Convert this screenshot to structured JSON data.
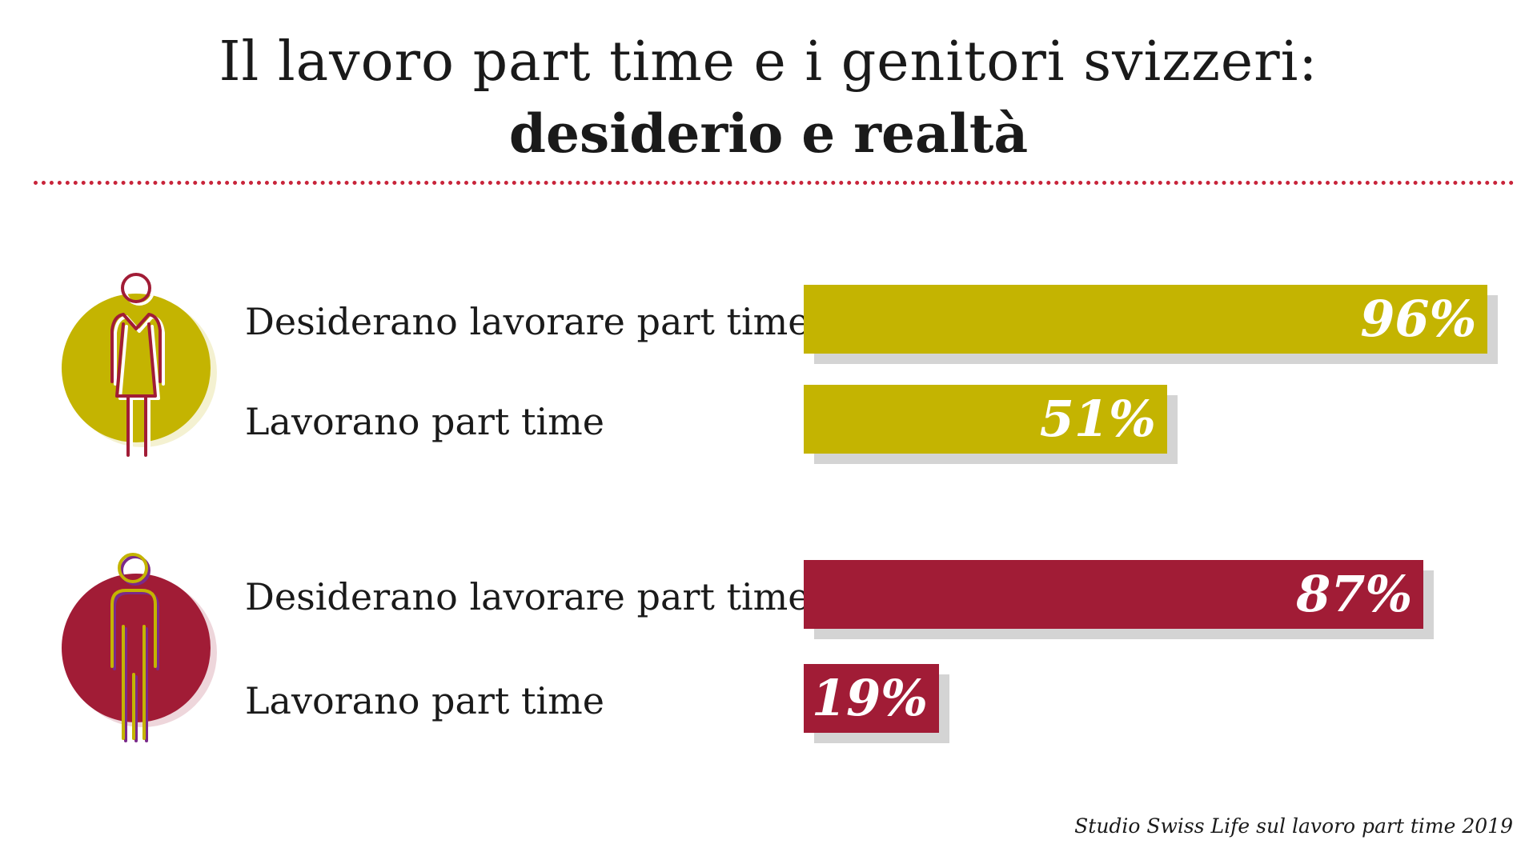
{
  "title": {
    "line1": "Il lavoro part time e i genitori svizzeri:",
    "line2": "desiderio e realtà"
  },
  "source": "Studio Swiss Life sul lavoro part time 2019",
  "colors": {
    "women": "#c4b401",
    "men": "#a11c36",
    "divider": "#c8243a",
    "shadow": "#d4d4d4"
  },
  "icons": {
    "women": "woman-icon",
    "men": "man-icon"
  },
  "chart_data": {
    "type": "bar",
    "orientation": "horizontal",
    "unit": "%",
    "xlim": [
      0,
      100
    ],
    "groups": [
      {
        "icon": "woman-icon",
        "color": "#c4b401",
        "bars": [
          {
            "label": "Desiderano lavorare part time",
            "value": 96,
            "display": "96%"
          },
          {
            "label": "Lavorano part time",
            "value": 51,
            "display": "51%"
          }
        ]
      },
      {
        "icon": "man-icon",
        "color": "#a11c36",
        "bars": [
          {
            "label": "Desiderano lavorare part time",
            "value": 87,
            "display": "87%"
          },
          {
            "label": "Lavorano part time",
            "value": 19,
            "display": "19%"
          }
        ]
      }
    ]
  }
}
